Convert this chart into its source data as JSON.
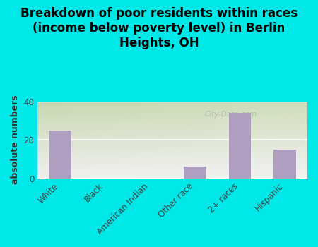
{
  "title": "Breakdown of poor residents within races\n(income below poverty level) in Berlin\nHeights, OH",
  "ylabel": "absolute numbers",
  "categories": [
    "White",
    "Black",
    "American Indian",
    "Other race",
    "2+ races",
    "Hispanic"
  ],
  "values": [
    25,
    0,
    0,
    6,
    34,
    15
  ],
  "bar_color": "#b09ec0",
  "background_color": "#00e8e8",
  "plot_bg_topleft": "#c8d8b0",
  "plot_bg_right": "#ddeedd",
  "plot_bg_bottom": "#f0f0f0",
  "ylim": [
    0,
    40
  ],
  "yticks": [
    0,
    20,
    40
  ],
  "grid_color": "#ffffff",
  "title_fontsize": 12,
  "ylabel_fontsize": 9,
  "tick_fontsize": 8.5,
  "watermark": "City-Data.com"
}
